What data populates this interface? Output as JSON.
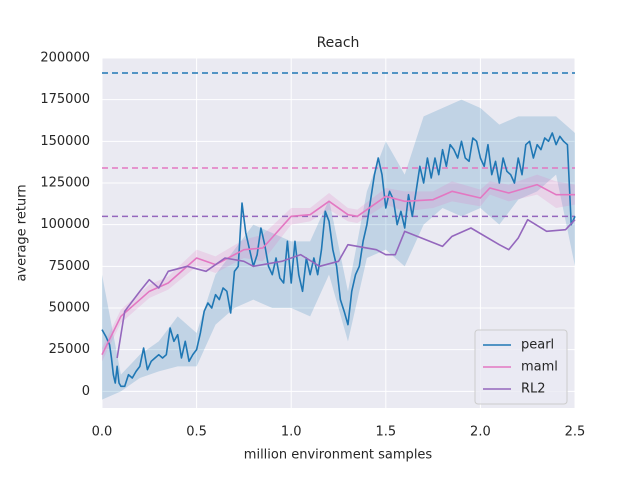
{
  "chart_data": {
    "type": "line",
    "title": "Reach",
    "xlabel": "million environment samples",
    "ylabel": "average return",
    "xlim": [
      0,
      2.5
    ],
    "ylim": [
      -10000,
      200000
    ],
    "xticks": [
      {
        "value": 0,
        "label": "0.0"
      },
      0.5,
      {
        "value": 1,
        "label": "1.0"
      },
      1.5,
      {
        "value": 2,
        "label": "2.0"
      },
      2.5
    ],
    "yticks": [
      0,
      25000,
      50000,
      75000,
      100000,
      125000,
      150000,
      175000,
      200000
    ],
    "grid": true,
    "legend": "lower right",
    "series": [
      {
        "name": "pearl",
        "color": "#1f77b4",
        "x": [
          0,
          0.02,
          0.04,
          0.05,
          0.06,
          0.07,
          0.08,
          0.09,
          0.1,
          0.12,
          0.14,
          0.16,
          0.18,
          0.2,
          0.22,
          0.24,
          0.26,
          0.28,
          0.3,
          0.32,
          0.34,
          0.36,
          0.38,
          0.4,
          0.42,
          0.44,
          0.46,
          0.48,
          0.5,
          0.52,
          0.54,
          0.56,
          0.58,
          0.6,
          0.62,
          0.64,
          0.66,
          0.68,
          0.7,
          0.72,
          0.74,
          0.76,
          0.78,
          0.8,
          0.82,
          0.84,
          0.86,
          0.88,
          0.9,
          0.92,
          0.94,
          0.96,
          0.98,
          1.0,
          1.02,
          1.04,
          1.06,
          1.08,
          1.1,
          1.12,
          1.14,
          1.16,
          1.18,
          1.2,
          1.22,
          1.24,
          1.26,
          1.28,
          1.3,
          1.32,
          1.34,
          1.36,
          1.38,
          1.4,
          1.42,
          1.44,
          1.46,
          1.48,
          1.5,
          1.52,
          1.54,
          1.56,
          1.58,
          1.6,
          1.62,
          1.64,
          1.66,
          1.68,
          1.7,
          1.72,
          1.74,
          1.76,
          1.78,
          1.8,
          1.82,
          1.84,
          1.86,
          1.88,
          1.9,
          1.92,
          1.94,
          1.96,
          1.98,
          2.0,
          2.02,
          2.04,
          2.06,
          2.08,
          2.1,
          2.12,
          2.14,
          2.16,
          2.18,
          2.2,
          2.22,
          2.24,
          2.26,
          2.28,
          2.3,
          2.32,
          2.34,
          2.36,
          2.38,
          2.4,
          2.42,
          2.44,
          2.46,
          2.48,
          2.5
        ],
        "values": [
          37000,
          33000,
          28000,
          20000,
          10000,
          5000,
          15000,
          5000,
          3000,
          3000,
          10000,
          8000,
          12000,
          15000,
          26000,
          13000,
          18000,
          20000,
          22000,
          20000,
          22000,
          38000,
          30000,
          34000,
          20000,
          30000,
          18000,
          22000,
          25000,
          35000,
          48000,
          53000,
          50000,
          58000,
          55000,
          62000,
          60000,
          47000,
          72000,
          75000,
          113000,
          95000,
          85000,
          75000,
          82000,
          98000,
          88000,
          75000,
          70000,
          80000,
          68000,
          65000,
          90000,
          65000,
          90000,
          70000,
          60000,
          80000,
          70000,
          80000,
          70000,
          85000,
          108000,
          102000,
          85000,
          75000,
          55000,
          48000,
          40000,
          60000,
          70000,
          75000,
          90000,
          100000,
          115000,
          130000,
          140000,
          130000,
          110000,
          120000,
          115000,
          100000,
          108000,
          98000,
          118000,
          105000,
          120000,
          135000,
          125000,
          140000,
          128000,
          140000,
          130000,
          145000,
          135000,
          148000,
          145000,
          140000,
          150000,
          140000,
          138000,
          152000,
          150000,
          140000,
          135000,
          148000,
          130000,
          138000,
          125000,
          140000,
          132000,
          130000,
          125000,
          140000,
          130000,
          148000,
          150000,
          140000,
          148000,
          145000,
          152000,
          150000,
          155000,
          148000,
          153000,
          150000,
          148000,
          100000,
          105000
        ],
        "band": {
          "x": [
            0,
            0.1,
            0.2,
            0.3,
            0.4,
            0.5,
            0.6,
            0.7,
            0.8,
            0.9,
            1.0,
            1.1,
            1.2,
            1.3,
            1.4,
            1.5,
            1.6,
            1.7,
            1.8,
            1.9,
            2.0,
            2.1,
            2.2,
            2.3,
            2.4,
            2.5
          ],
          "lower": [
            -5000,
            0,
            8000,
            12000,
            15000,
            15000,
            40000,
            50000,
            55000,
            50000,
            50000,
            45000,
            70000,
            30000,
            80000,
            85000,
            75000,
            100000,
            110000,
            105000,
            110000,
            100000,
            115000,
            120000,
            130000,
            75000
          ],
          "upper": [
            70000,
            10000,
            22000,
            30000,
            45000,
            35000,
            70000,
            85000,
            100000,
            95000,
            90000,
            90000,
            115000,
            60000,
            120000,
            150000,
            130000,
            165000,
            170000,
            175000,
            170000,
            160000,
            165000,
            165000,
            165000,
            155000
          ]
        }
      },
      {
        "name": "maml",
        "color": "#e377c2",
        "x": [
          0,
          0.1,
          0.2,
          0.25,
          0.35,
          0.5,
          0.6,
          0.75,
          0.85,
          1.0,
          1.1,
          1.2,
          1.3,
          1.35,
          1.5,
          1.6,
          1.75,
          1.85,
          2.0,
          2.05,
          2.15,
          2.3,
          2.4,
          2.5
        ],
        "values": [
          22000,
          45000,
          55000,
          60000,
          65000,
          80000,
          76000,
          85000,
          86000,
          105000,
          106000,
          114000,
          106000,
          105000,
          117000,
          114000,
          115000,
          120000,
          116000,
          122000,
          119000,
          124000,
          118000,
          118000
        ],
        "band": {
          "x": [
            0,
            0.1,
            0.2,
            0.25,
            0.35,
            0.5,
            0.6,
            0.75,
            0.85,
            1.0,
            1.1,
            1.2,
            1.3,
            1.35,
            1.5,
            1.6,
            1.75,
            1.85,
            2.0,
            2.05,
            2.15,
            2.3,
            2.4,
            2.5
          ],
          "lower": [
            18000,
            41000,
            51000,
            56000,
            61000,
            75000,
            71000,
            80000,
            78000,
            100000,
            102000,
            109000,
            102000,
            101000,
            112000,
            108000,
            110000,
            114000,
            111000,
            118000,
            114000,
            118000,
            110000,
            112000
          ],
          "upper": [
            26000,
            49000,
            59000,
            64000,
            69000,
            85000,
            81000,
            91000,
            94000,
            110000,
            110000,
            119000,
            110000,
            109000,
            122000,
            120000,
            120000,
            126000,
            121000,
            126000,
            124000,
            130000,
            126000,
            124000
          ]
        }
      },
      {
        "name": "RL2",
        "color": "#9467bd",
        "x": [
          0.08,
          0.12,
          0.2,
          0.25,
          0.3,
          0.35,
          0.45,
          0.55,
          0.65,
          0.75,
          0.8,
          0.95,
          1.05,
          1.15,
          1.25,
          1.3,
          1.45,
          1.5,
          1.55,
          1.6,
          1.8,
          1.85,
          1.95,
          2.1,
          2.15,
          2.2,
          2.25,
          2.35,
          2.45,
          2.5
        ],
        "values": [
          20000,
          48000,
          60000,
          67000,
          62000,
          72000,
          75000,
          72000,
          80000,
          78000,
          75000,
          78000,
          82000,
          75000,
          78000,
          88000,
          85000,
          82000,
          82000,
          96000,
          87000,
          93000,
          98000,
          88000,
          85000,
          92000,
          103000,
          96000,
          97000,
          103000
        ]
      }
    ],
    "hlines": [
      {
        "value": 191000,
        "color": "#1f77b4"
      },
      {
        "value": 134000,
        "color": "#e377c2"
      },
      {
        "value": 105000,
        "color": "#9467bd"
      }
    ]
  }
}
